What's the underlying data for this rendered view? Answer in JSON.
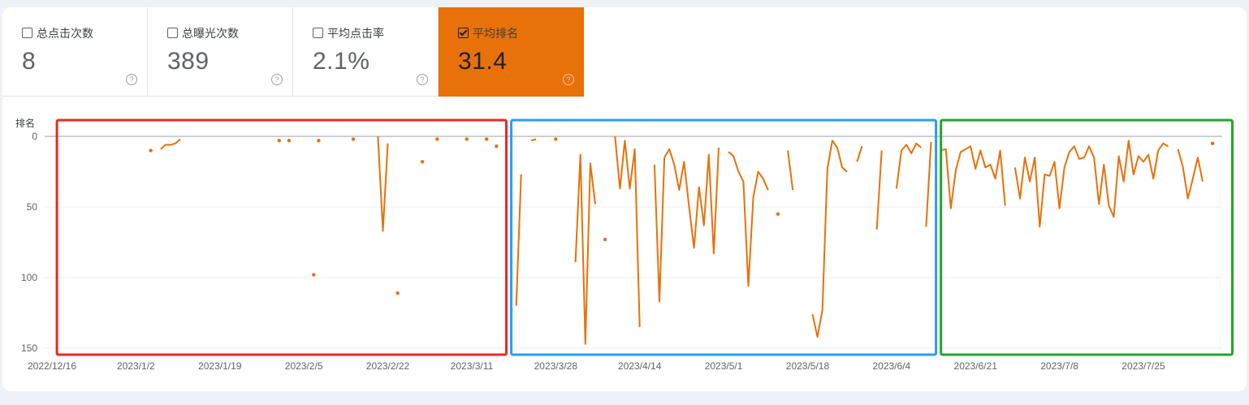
{
  "metrics": [
    {
      "label": "总点击次数",
      "value": "8",
      "checked": false
    },
    {
      "label": "总曝光次数",
      "value": "389",
      "checked": false
    },
    {
      "label": "平均点击率",
      "value": "2.1%",
      "checked": false
    },
    {
      "label": "平均排名",
      "value": "31.4",
      "checked": true
    }
  ],
  "help_glyph": "?",
  "colors": {
    "accent": "#e8710a",
    "highlight_red": "#e52b21",
    "highlight_blue": "#2a9df4",
    "highlight_green": "#22a42b"
  },
  "chart_data": {
    "type": "line",
    "ylabel": "排名",
    "yreversed": true,
    "ylim": [
      0,
      150
    ],
    "yticks": [
      0,
      50,
      100,
      150
    ],
    "xtick_labels": [
      "2022/12/16",
      "2023/1/2",
      "2023/1/19",
      "2023/2/5",
      "2023/2/22",
      "2023/3/11",
      "2023/3/28",
      "2023/4/14",
      "2023/5/1",
      "2023/5/18",
      "2023/6/4",
      "2023/6/21",
      "2023/7/8",
      "2023/7/25"
    ],
    "series": [
      {
        "name": "平均排名",
        "color": "#e8710a",
        "segments": [
          [
            [
              "2023/1/5",
              10
            ]
          ],
          [
            [
              "2023/1/7",
              9
            ],
            [
              "2023/1/8",
              6
            ],
            [
              "2023/1/9",
              6
            ],
            [
              "2023/1/10",
              5
            ],
            [
              "2023/1/11",
              2
            ]
          ],
          [
            [
              "2023/1/31",
              3
            ]
          ],
          [
            [
              "2023/2/2",
              3
            ]
          ],
          [
            [
              "2023/2/7",
              98
            ]
          ],
          [
            [
              "2023/2/8",
              3
            ]
          ],
          [
            [
              "2023/2/15",
              2
            ]
          ],
          [
            [
              "2023/2/20",
              0
            ],
            [
              "2023/2/21",
              67
            ],
            [
              "2023/2/22",
              5
            ]
          ],
          [
            [
              "2023/2/24",
              111
            ]
          ],
          [
            [
              "2023/2/29",
              18
            ]
          ],
          [
            [
              "2023/3/4",
              2
            ]
          ],
          [
            [
              "2023/3/10",
              2
            ]
          ],
          [
            [
              "2023/3/14",
              2
            ]
          ],
          [
            [
              "2023/3/16",
              7
            ]
          ],
          [
            [
              "2023/3/20",
              120
            ],
            [
              "2023/3/21",
              27
            ]
          ],
          [
            [
              "2023/3/23",
              3
            ],
            [
              "2023/3/24",
              2
            ]
          ],
          [
            [
              "2023/3/28",
              2
            ]
          ],
          [
            [
              "2023/4/1",
              89
            ],
            [
              "2023/4/2",
              13
            ],
            [
              "2023/4/3",
              147
            ],
            [
              "2023/4/4",
              19
            ],
            [
              "2023/4/5",
              48
            ]
          ],
          [
            [
              "2023/4/7",
              73
            ]
          ],
          [
            [
              "2023/4/9",
              0
            ],
            [
              "2023/4/10",
              37
            ],
            [
              "2023/4/11",
              3
            ],
            [
              "2023/4/12",
              37
            ],
            [
              "2023/4/13",
              9
            ],
            [
              "2023/4/14",
              135
            ]
          ],
          [
            [
              "2023/4/17",
              20
            ],
            [
              "2023/4/18",
              117
            ],
            [
              "2023/4/19",
              15
            ],
            [
              "2023/4/20",
              9
            ],
            [
              "2023/4/21",
              20
            ],
            [
              "2023/4/22",
              38
            ],
            [
              "2023/4/23",
              18
            ],
            [
              "2023/4/24",
              50
            ],
            [
              "2023/4/25",
              79
            ],
            [
              "2023/4/26",
              36
            ],
            [
              "2023/4/27",
              63
            ],
            [
              "2023/4/28",
              13
            ],
            [
              "2023/4/29",
              83
            ],
            [
              "2023/4/30",
              8
            ]
          ],
          [
            [
              "2023/5/2",
              11
            ],
            [
              "2023/5/3",
              14
            ],
            [
              "2023/5/4",
              25
            ],
            [
              "2023/5/5",
              32
            ],
            [
              "2023/5/6",
              106
            ],
            [
              "2023/5/7",
              43
            ],
            [
              "2023/5/8",
              25
            ],
            [
              "2023/5/9",
              30
            ],
            [
              "2023/5/10",
              38
            ]
          ],
          [
            [
              "2023/5/12",
              55
            ]
          ],
          [
            [
              "2023/5/14",
              10
            ],
            [
              "2023/5/15",
              38
            ]
          ],
          [
            [
              "2023/5/19",
              126
            ],
            [
              "2023/5/20",
              142
            ],
            [
              "2023/5/21",
              123
            ],
            [
              "2023/5/22",
              23
            ],
            [
              "2023/5/23",
              3
            ],
            [
              "2023/5/24",
              8
            ],
            [
              "2023/5/25",
              22
            ],
            [
              "2023/5/26",
              25
            ]
          ],
          [
            [
              "2023/5/28",
              18
            ],
            [
              "2023/5/29",
              7
            ]
          ],
          [
            [
              "2023/6/1",
              66
            ],
            [
              "2023/6/2",
              10
            ]
          ],
          [
            [
              "2023/6/5",
              37
            ],
            [
              "2023/6/6",
              10
            ],
            [
              "2023/6/7",
              6
            ],
            [
              "2023/6/8",
              12
            ],
            [
              "2023/6/9",
              5
            ],
            [
              "2023/6/10",
              8
            ]
          ],
          [
            [
              "2023/6/11",
              64
            ],
            [
              "2023/6/12",
              4
            ]
          ],
          [
            [
              "2023/6/14",
              10
            ],
            [
              "2023/6/15",
              9
            ],
            [
              "2023/6/16",
              51
            ],
            [
              "2023/6/17",
              24
            ],
            [
              "2023/6/18",
              11
            ],
            [
              "2023/6/19",
              9
            ],
            [
              "2023/6/20",
              7
            ],
            [
              "2023/6/21",
              23
            ],
            [
              "2023/6/22",
              10
            ],
            [
              "2023/6/23",
              22
            ],
            [
              "2023/6/24",
              20
            ],
            [
              "2023/6/25",
              30
            ],
            [
              "2023/6/26",
              10
            ],
            [
              "2023/6/27",
              49
            ]
          ],
          [
            [
              "2023/6/29",
              22
            ],
            [
              "2023/6/30",
              44
            ],
            [
              "2023/7/1",
              15
            ],
            [
              "2023/7/2",
              32
            ],
            [
              "2023/7/3",
              15
            ],
            [
              "2023/7/4",
              64
            ],
            [
              "2023/7/5",
              27
            ],
            [
              "2023/7/6",
              28
            ],
            [
              "2023/7/7",
              18
            ],
            [
              "2023/7/8",
              51
            ],
            [
              "2023/7/9",
              22
            ],
            [
              "2023/7/10",
              11
            ],
            [
              "2023/7/11",
              7
            ],
            [
              "2023/7/12",
              16
            ],
            [
              "2023/7/13",
              15
            ],
            [
              "2023/7/14",
              7
            ],
            [
              "2023/7/15",
              15
            ],
            [
              "2023/7/16",
              48
            ],
            [
              "2023/7/17",
              20
            ],
            [
              "2023/7/18",
              49
            ],
            [
              "2023/7/19",
              57
            ],
            [
              "2023/7/20",
              14
            ],
            [
              "2023/7/21",
              32
            ],
            [
              "2023/7/22",
              3
            ],
            [
              "2023/7/23",
              27
            ],
            [
              "2023/7/24",
              14
            ],
            [
              "2023/7/25",
              18
            ],
            [
              "2023/7/26",
              13
            ],
            [
              "2023/7/27",
              30
            ],
            [
              "2023/7/28",
              10
            ],
            [
              "2023/7/29",
              5
            ],
            [
              "2023/7/30",
              7
            ]
          ],
          [
            [
              "2023/8/1",
              9
            ],
            [
              "2023/8/2",
              22
            ],
            [
              "2023/8/3",
              44
            ],
            [
              "2023/8/4",
              30
            ],
            [
              "2023/8/5",
              15
            ],
            [
              "2023/8/6",
              32
            ]
          ],
          [
            [
              "2023/8/8",
              5
            ]
          ]
        ]
      }
    ],
    "highlight_regions": [
      {
        "from": "2022/12/17",
        "to": "2023/3/18",
        "color": "#e52b21"
      },
      {
        "from": "2023/3/19",
        "to": "2023/6/13",
        "color": "#2a9df4"
      },
      {
        "from": "2023/6/14",
        "to": "2023/8/12",
        "color": "#22a42b"
      }
    ]
  }
}
